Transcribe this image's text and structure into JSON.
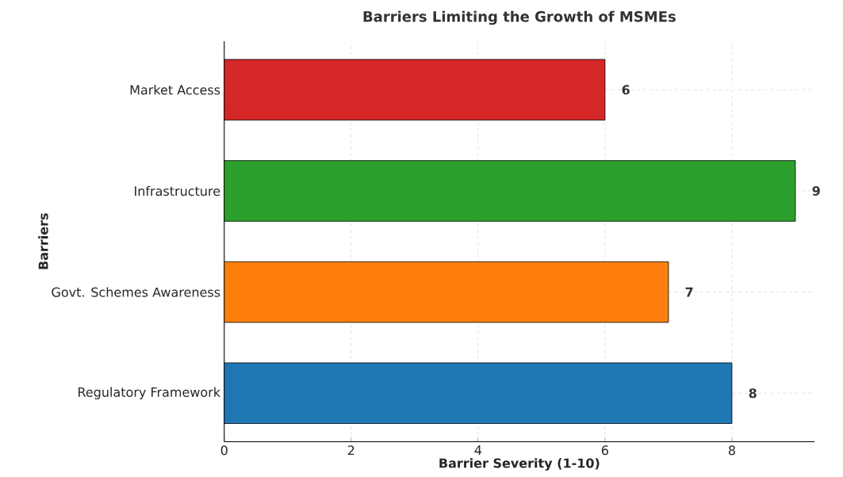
{
  "chart_data": {
    "type": "bar",
    "orientation": "horizontal",
    "title": "Barriers Limiting the Growth of MSMEs",
    "xlabel": "Barrier Severity (1-10)",
    "ylabel": "Barriers",
    "categories": [
      "Market Access",
      "Infrastructure",
      "Govt. Schemes Awareness",
      "Regulatory Framework"
    ],
    "values": [
      6,
      9,
      7,
      8
    ],
    "colors": [
      "#d62728",
      "#2ca02c",
      "#ff7f0e",
      "#1f77b4"
    ],
    "xlim": [
      0,
      9.3
    ],
    "xticks": [
      0,
      2,
      4,
      6,
      8
    ],
    "grid": true,
    "data_labels": true
  }
}
